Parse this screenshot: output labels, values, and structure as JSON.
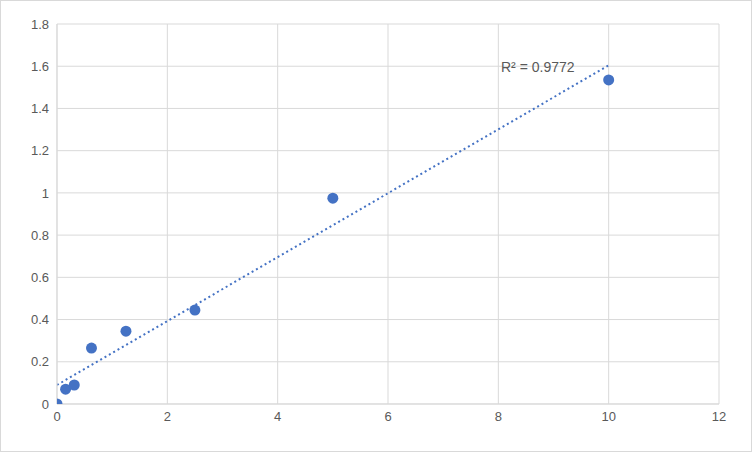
{
  "chart_data": {
    "type": "scatter",
    "annotations": [
      "R² = 0.9772"
    ],
    "xlim": [
      0,
      12
    ],
    "xticks": [
      0,
      2,
      4,
      6,
      8,
      10,
      12
    ],
    "ylim": [
      0,
      1.8
    ],
    "yticks": [
      0,
      0.2,
      0.4,
      0.6,
      0.8,
      1,
      1.2,
      1.4,
      1.6,
      1.8
    ],
    "grid": true,
    "series": [
      {
        "type": "scatter",
        "marker": "circle",
        "color": "#4472c4",
        "x": [
          0,
          0.156,
          0.3125,
          0.625,
          1.25,
          2.5,
          5,
          10
        ],
        "values": [
          0,
          0.07,
          0.09,
          0.265,
          0.345,
          0.445,
          0.975,
          1.535
        ]
      },
      {
        "type": "line",
        "line_style": "dotted",
        "color": "#4472c4",
        "x": [
          0,
          10
        ],
        "values": [
          0.09,
          1.604
        ]
      }
    ]
  }
}
